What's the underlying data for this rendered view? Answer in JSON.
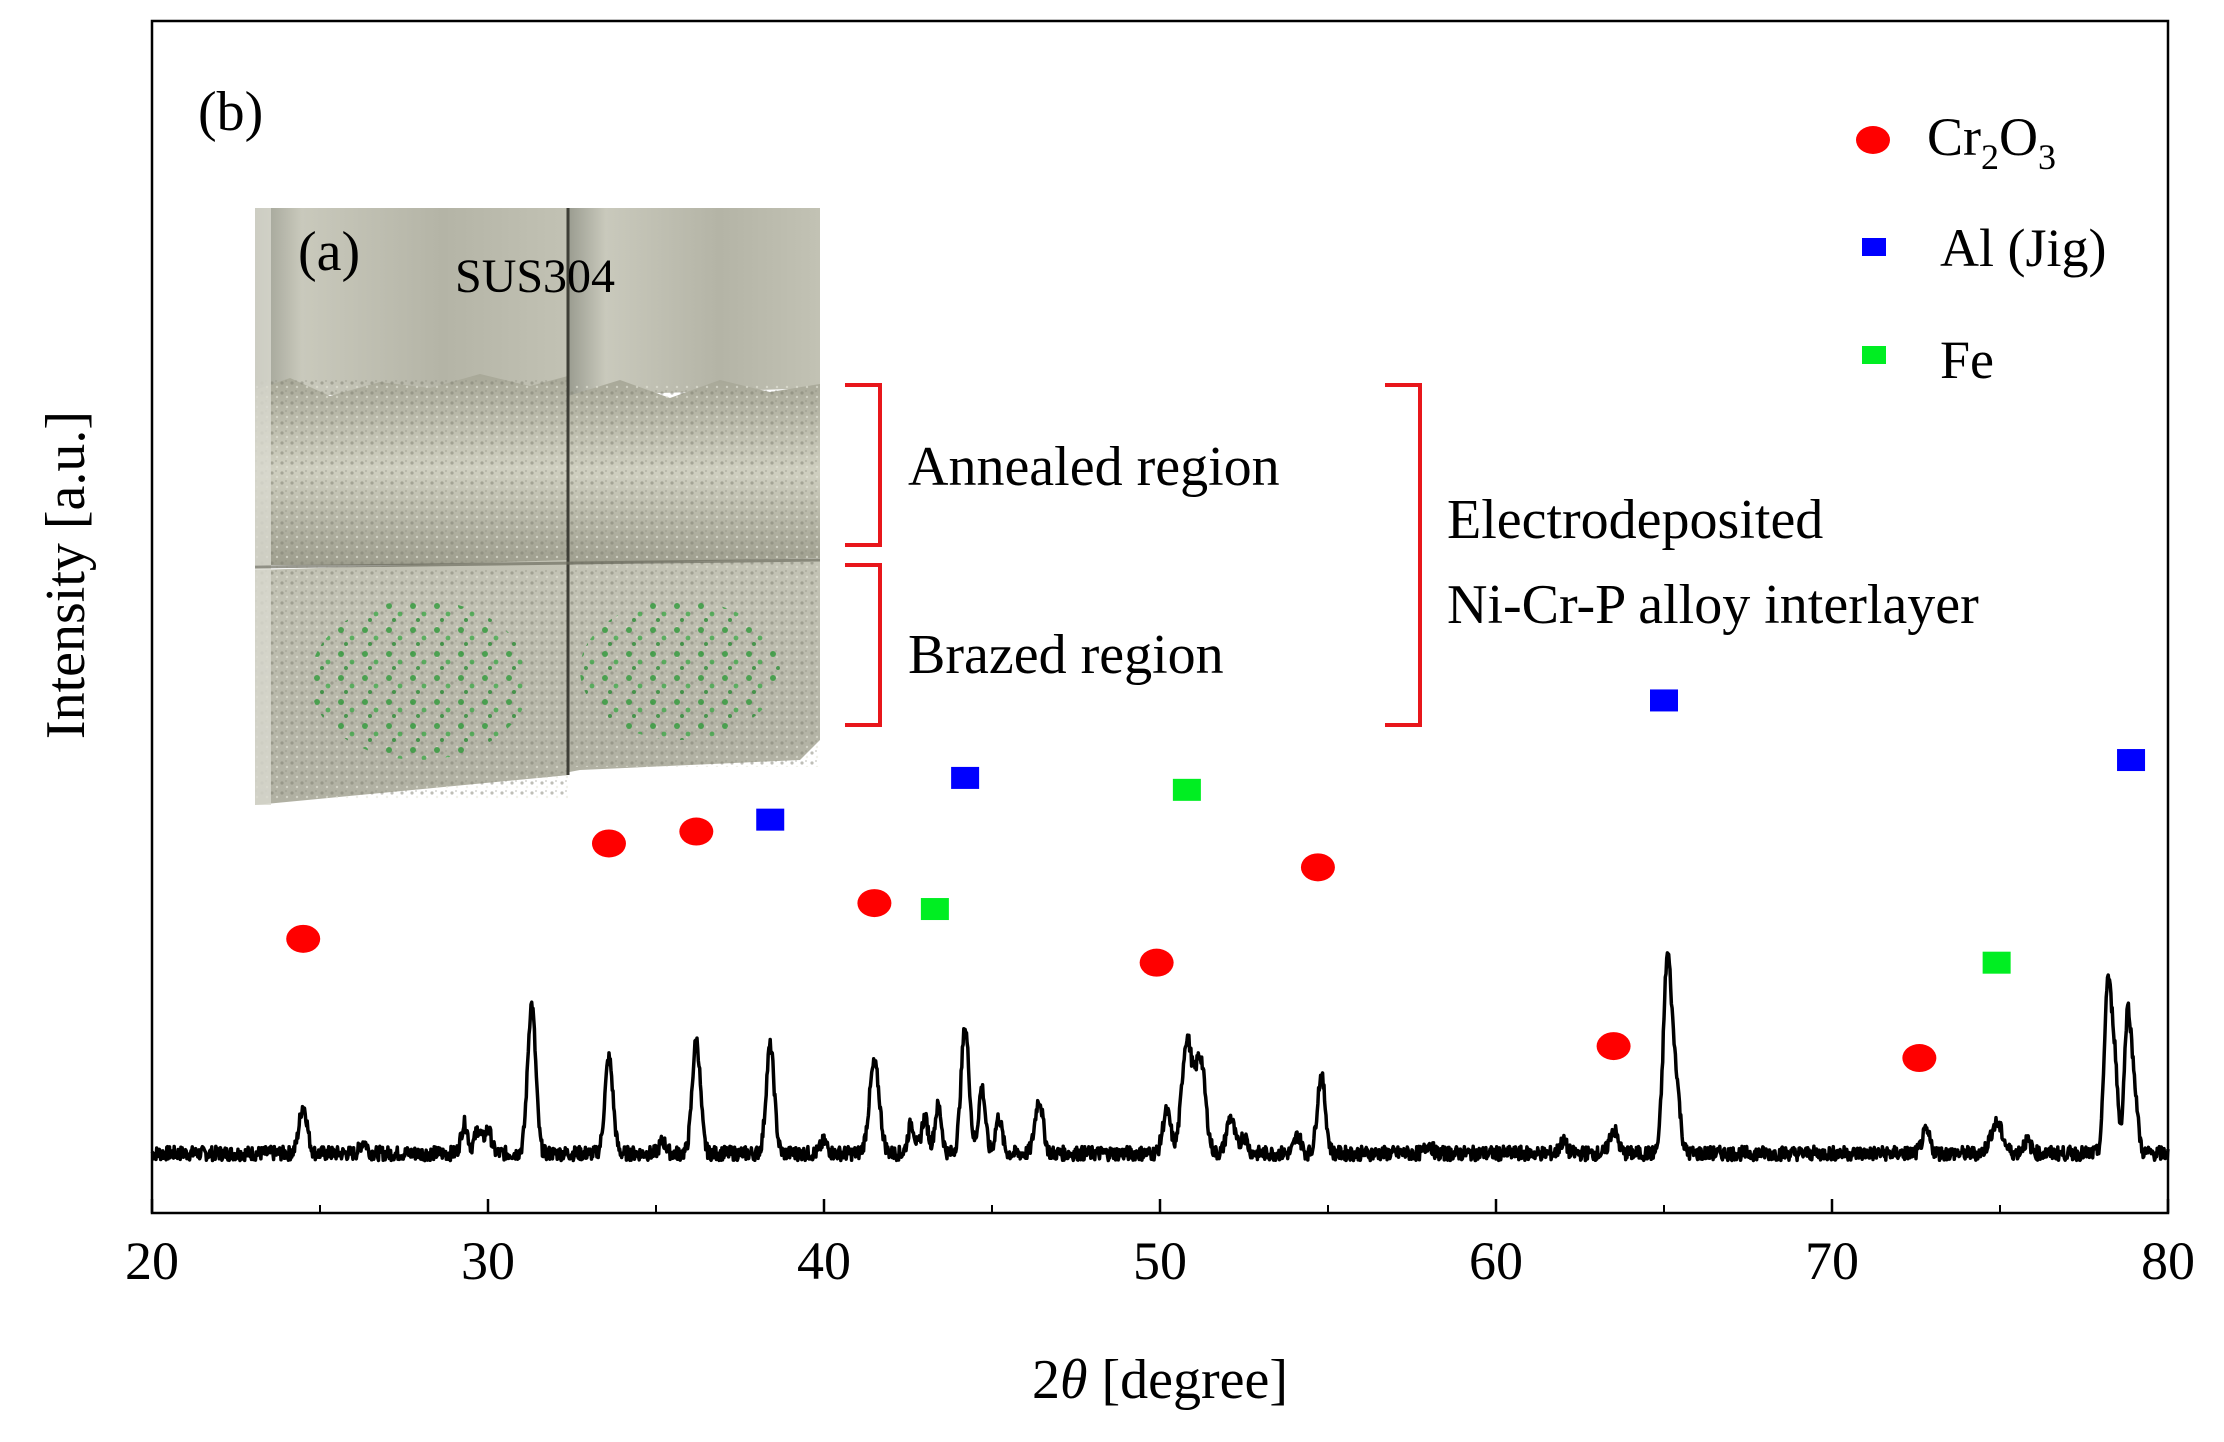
{
  "chart_data": {
    "type": "line",
    "panel_label": "(b)",
    "xlabel_prefix": "2",
    "xlabel_symbol": "θ",
    "xlabel_unit": "[degree]",
    "ylabel": "Intensity [a.u.]",
    "xlim": [
      20,
      80
    ],
    "ylim": [
      0,
      100
    ],
    "xticks": [
      20,
      30,
      40,
      50,
      60,
      70,
      80
    ],
    "xtick_labels": [
      "20",
      "30",
      "40",
      "50",
      "60",
      "70",
      "80"
    ],
    "baseline": 5,
    "noise": 0.6,
    "peaks": [
      {
        "x": 24.5,
        "h": 4.0,
        "w": 0.12
      },
      {
        "x": 26.3,
        "h": 1.0,
        "w": 0.1
      },
      {
        "x": 29.3,
        "h": 2.5,
        "w": 0.1
      },
      {
        "x": 29.7,
        "h": 2.0,
        "w": 0.1
      },
      {
        "x": 30.0,
        "h": 2.0,
        "w": 0.1
      },
      {
        "x": 31.3,
        "h": 12.5,
        "w": 0.12
      },
      {
        "x": 33.6,
        "h": 8.0,
        "w": 0.12
      },
      {
        "x": 35.2,
        "h": 1.0,
        "w": 0.1
      },
      {
        "x": 36.2,
        "h": 9.5,
        "w": 0.12
      },
      {
        "x": 38.4,
        "h": 9.0,
        "w": 0.12
      },
      {
        "x": 40.0,
        "h": 1.0,
        "w": 0.1
      },
      {
        "x": 41.5,
        "h": 7.5,
        "w": 0.15
      },
      {
        "x": 42.6,
        "h": 2.5,
        "w": 0.1
      },
      {
        "x": 43.0,
        "h": 3.0,
        "w": 0.1
      },
      {
        "x": 43.4,
        "h": 4.0,
        "w": 0.1
      },
      {
        "x": 44.2,
        "h": 10.5,
        "w": 0.12
      },
      {
        "x": 44.7,
        "h": 5.5,
        "w": 0.1
      },
      {
        "x": 45.2,
        "h": 3.0,
        "w": 0.1
      },
      {
        "x": 46.4,
        "h": 4.5,
        "w": 0.12
      },
      {
        "x": 50.2,
        "h": 3.5,
        "w": 0.12
      },
      {
        "x": 50.8,
        "h": 9.5,
        "w": 0.15
      },
      {
        "x": 51.2,
        "h": 8.0,
        "w": 0.15
      },
      {
        "x": 52.1,
        "h": 3.0,
        "w": 0.12
      },
      {
        "x": 52.5,
        "h": 1.5,
        "w": 0.1
      },
      {
        "x": 54.1,
        "h": 1.5,
        "w": 0.1
      },
      {
        "x": 54.8,
        "h": 6.5,
        "w": 0.12
      },
      {
        "x": 58.0,
        "h": 0.8,
        "w": 0.1
      },
      {
        "x": 62.0,
        "h": 1.0,
        "w": 0.1
      },
      {
        "x": 63.5,
        "h": 2.0,
        "w": 0.12
      },
      {
        "x": 65.1,
        "h": 16.0,
        "w": 0.12
      },
      {
        "x": 65.35,
        "h": 6.0,
        "w": 0.12
      },
      {
        "x": 72.8,
        "h": 1.8,
        "w": 0.12
      },
      {
        "x": 74.9,
        "h": 2.5,
        "w": 0.18
      },
      {
        "x": 75.8,
        "h": 1.0,
        "w": 0.12
      },
      {
        "x": 78.2,
        "h": 13.5,
        "w": 0.1
      },
      {
        "x": 78.4,
        "h": 8.0,
        "w": 0.1
      },
      {
        "x": 78.8,
        "h": 11.5,
        "w": 0.1
      },
      {
        "x": 79.0,
        "h": 5.0,
        "w": 0.1
      }
    ],
    "series": [
      {
        "name": "Cr2O3",
        "label_main": "Cr",
        "label_sub1": "2",
        "label_mid": "O",
        "label_sub2": "3",
        "marker": "circle",
        "color": "#ff0000",
        "positions": [
          {
            "x": 24.5,
            "y": 23
          },
          {
            "x": 33.6,
            "y": 31
          },
          {
            "x": 36.2,
            "y": 32
          },
          {
            "x": 41.5,
            "y": 26
          },
          {
            "x": 49.9,
            "y": 21
          },
          {
            "x": 54.7,
            "y": 29
          },
          {
            "x": 63.5,
            "y": 14
          },
          {
            "x": 72.6,
            "y": 13
          }
        ]
      },
      {
        "name": "Al (Jig)",
        "label": "Al (Jig)",
        "marker": "square",
        "color": "#0000ff",
        "positions": [
          {
            "x": 38.4,
            "y": 33
          },
          {
            "x": 44.2,
            "y": 36.5
          },
          {
            "x": 65.0,
            "y": 43
          },
          {
            "x": 78.9,
            "y": 38
          }
        ]
      },
      {
        "name": "Fe",
        "label": "Fe",
        "marker": "square",
        "color": "#00ee22",
        "positions": [
          {
            "x": 43.3,
            "y": 25.5
          },
          {
            "x": 50.8,
            "y": 35.5
          },
          {
            "x": 74.9,
            "y": 21
          }
        ]
      }
    ],
    "legend_position": "top-right",
    "inset": {
      "panel_label": "(a)",
      "material_label": "SUS304",
      "annealed_label": "Annealed region",
      "brazed_label": "Brazed region",
      "group_label_line1": "Electrodeposited",
      "group_label_line2": "Ni-Cr-P alloy interlayer"
    },
    "colors": {
      "line": "#000000",
      "bracket": "#e8161b",
      "cr2o3": "#ff0000",
      "al": "#0000ff",
      "fe": "#00ee22"
    }
  }
}
